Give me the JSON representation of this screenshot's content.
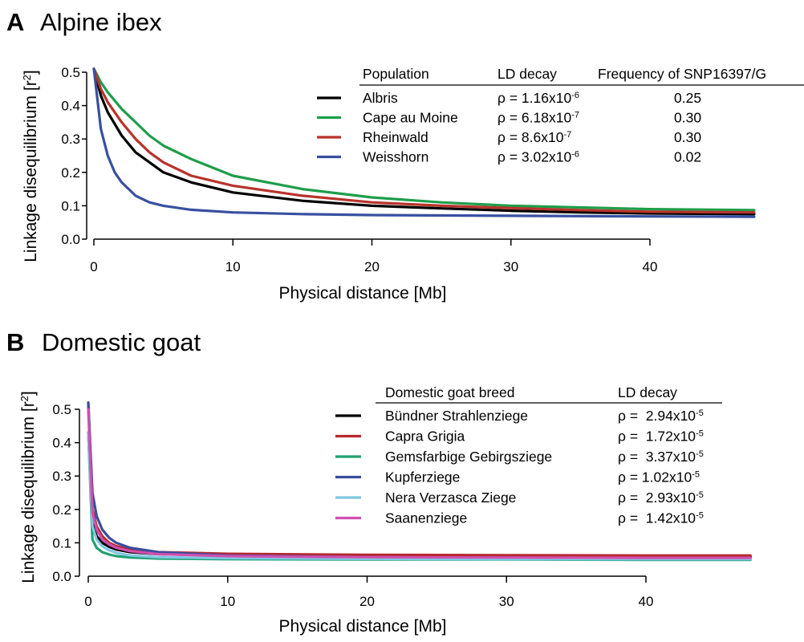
{
  "panels": [
    {
      "letter": "A",
      "title": "Alpine ibex",
      "ylabel": "Linkage disequilibrium [r²]",
      "xlabel": "Physical distance [Mb]",
      "legend_headers": [
        "Population",
        "LD decay",
        "Frequency of SNP16397/G"
      ],
      "legend_rows": [
        {
          "name": "Albris",
          "rho_base": "ρ = 1.16x10",
          "rho_exp": "-6",
          "freq": "0.25",
          "color": "#000000"
        },
        {
          "name": "Cape au Moine",
          "rho_base": "ρ = 6.18x10",
          "rho_exp": "-7",
          "freq": "0.30",
          "color": "#1e9e4a"
        },
        {
          "name": "Rheinwald",
          "rho_base": "ρ = 8.6x10",
          "rho_exp": "-7",
          "freq": "0.30",
          "color": "#b8332c"
        },
        {
          "name": "Weisshorn",
          "rho_base": "ρ = 3.02x10",
          "rho_exp": "-6",
          "freq": "0.02",
          "color": "#3850a0"
        }
      ]
    },
    {
      "letter": "B",
      "title": "Domestic goat",
      "ylabel": "Linkage disequilibrium [r²]",
      "xlabel": "Physical distance [Mb]",
      "legend_headers": [
        "Domestic goat breed",
        "LD decay"
      ],
      "legend_rows": [
        {
          "name": "Bündner Strahlenziege",
          "rho_base": "ρ =  2.94x10",
          "rho_exp": "-5",
          "color": "#000000"
        },
        {
          "name": "Capra Grigia",
          "rho_base": "ρ =  1.72x10",
          "rho_exp": "-5",
          "color": "#b8282c"
        },
        {
          "name": "Gemsfarbige Gebirgsziege",
          "rho_base": "ρ =  3.37x10",
          "rho_exp": "-5",
          "color": "#21a070"
        },
        {
          "name": "Kupferziege",
          "rho_base": "ρ = 1.02x10",
          "rho_exp": "-5",
          "color": "#3a4d9c"
        },
        {
          "name": "Nera Verzasca Ziege",
          "rho_base": "ρ =  2.93x10",
          "rho_exp": "-5",
          "color": "#7ec8e3"
        },
        {
          "name": "Saanenziege",
          "rho_base": "ρ =  1.42x10",
          "rho_exp": "-5",
          "color": "#d050b0"
        }
      ]
    }
  ],
  "chart_data": [
    {
      "type": "line",
      "title": "Alpine ibex",
      "xlabel": "Physical distance [Mb]",
      "ylabel": "Linkage disequilibrium [r²]",
      "xlim": [
        0,
        47.5
      ],
      "ylim": [
        0,
        0.5
      ],
      "xticks": [
        0,
        10,
        20,
        30,
        40
      ],
      "yticks": [
        0.0,
        0.1,
        0.2,
        0.3,
        0.4,
        0.5
      ],
      "grid": false,
      "legend_position": "top-right",
      "series": [
        {
          "name": "Albris",
          "color": "#000000",
          "x": [
            0,
            0.5,
            1,
            2,
            3,
            4,
            5,
            7,
            10,
            15,
            20,
            25,
            30,
            35,
            40,
            47.5
          ],
          "y": [
            0.51,
            0.43,
            0.38,
            0.31,
            0.26,
            0.23,
            0.2,
            0.17,
            0.14,
            0.115,
            0.1,
            0.092,
            0.085,
            0.08,
            0.077,
            0.075
          ]
        },
        {
          "name": "Cape au Moine",
          "color": "#1e9e4a",
          "x": [
            0,
            0.5,
            1,
            2,
            3,
            4,
            5,
            7,
            10,
            15,
            20,
            25,
            30,
            35,
            40,
            47.5
          ],
          "y": [
            0.51,
            0.47,
            0.44,
            0.39,
            0.35,
            0.31,
            0.28,
            0.24,
            0.19,
            0.15,
            0.125,
            0.11,
            0.1,
            0.095,
            0.09,
            0.087
          ]
        },
        {
          "name": "Rheinwald",
          "color": "#b8332c",
          "x": [
            0,
            0.5,
            1,
            2,
            3,
            4,
            5,
            7,
            10,
            15,
            20,
            25,
            30,
            35,
            40,
            47.5
          ],
          "y": [
            0.51,
            0.45,
            0.41,
            0.35,
            0.3,
            0.26,
            0.23,
            0.19,
            0.16,
            0.13,
            0.11,
            0.1,
            0.093,
            0.087,
            0.082,
            0.08
          ]
        },
        {
          "name": "Weisshorn",
          "color": "#3850a0",
          "x": [
            0,
            0.5,
            1,
            1.5,
            2,
            3,
            4,
            5,
            7,
            10,
            15,
            20,
            30,
            40,
            47.5
          ],
          "y": [
            0.51,
            0.33,
            0.25,
            0.2,
            0.17,
            0.13,
            0.11,
            0.1,
            0.088,
            0.08,
            0.075,
            0.072,
            0.07,
            0.068,
            0.067
          ]
        }
      ]
    },
    {
      "type": "line",
      "title": "Domestic goat",
      "xlabel": "Physical distance [Mb]",
      "ylabel": "Linkage disequilibrium [r²]",
      "xlim": [
        0,
        47.5
      ],
      "ylim": [
        0,
        0.5
      ],
      "xticks": [
        0,
        10,
        20,
        30,
        40
      ],
      "yticks": [
        0.0,
        0.1,
        0.2,
        0.3,
        0.4,
        0.5
      ],
      "grid": false,
      "legend_position": "top-right",
      "series": [
        {
          "name": "Bündner Strahlenziege",
          "color": "#000000",
          "x": [
            0,
            0.3,
            0.6,
            1,
            1.5,
            2,
            3,
            5,
            10,
            20,
            30,
            40,
            47.5
          ],
          "y": [
            0.43,
            0.16,
            0.12,
            0.1,
            0.088,
            0.08,
            0.072,
            0.066,
            0.062,
            0.06,
            0.059,
            0.058,
            0.058
          ]
        },
        {
          "name": "Capra Grigia",
          "color": "#b8282c",
          "x": [
            0,
            0.3,
            0.6,
            1,
            1.5,
            2,
            3,
            5,
            10,
            20,
            30,
            40,
            47.5
          ],
          "y": [
            0.52,
            0.2,
            0.15,
            0.12,
            0.1,
            0.09,
            0.08,
            0.072,
            0.067,
            0.064,
            0.063,
            0.062,
            0.062
          ]
        },
        {
          "name": "Gemsfarbige Gebirgsziege",
          "color": "#21a070",
          "x": [
            0,
            0.3,
            0.6,
            1,
            1.5,
            2,
            3,
            5,
            10,
            20,
            30,
            40,
            47.5
          ],
          "y": [
            0.43,
            0.11,
            0.085,
            0.072,
            0.065,
            0.06,
            0.056,
            0.053,
            0.051,
            0.05,
            0.05,
            0.049,
            0.049
          ]
        },
        {
          "name": "Kupferziege",
          "color": "#3a4d9c",
          "x": [
            0,
            0.3,
            0.6,
            1,
            1.5,
            2,
            3,
            5,
            10,
            20,
            30,
            40,
            47.5
          ],
          "y": [
            0.52,
            0.25,
            0.18,
            0.14,
            0.115,
            0.1,
            0.085,
            0.072,
            0.062,
            0.057,
            0.055,
            0.054,
            0.054
          ]
        },
        {
          "name": "Nera Verzasca Ziege",
          "color": "#7ec8e3",
          "x": [
            0,
            0.3,
            0.6,
            1,
            1.5,
            2,
            3,
            5,
            10,
            20,
            30,
            40,
            47.5
          ],
          "y": [
            0.43,
            0.15,
            0.11,
            0.09,
            0.078,
            0.07,
            0.062,
            0.057,
            0.054,
            0.052,
            0.051,
            0.051,
            0.051
          ]
        },
        {
          "name": "Saanenziege",
          "color": "#d050b0",
          "x": [
            0,
            0.3,
            0.6,
            1,
            1.5,
            2,
            3,
            5,
            10,
            20,
            30,
            40,
            47.5
          ],
          "y": [
            0.5,
            0.19,
            0.14,
            0.11,
            0.095,
            0.085,
            0.075,
            0.066,
            0.06,
            0.057,
            0.056,
            0.055,
            0.055
          ]
        }
      ]
    }
  ]
}
